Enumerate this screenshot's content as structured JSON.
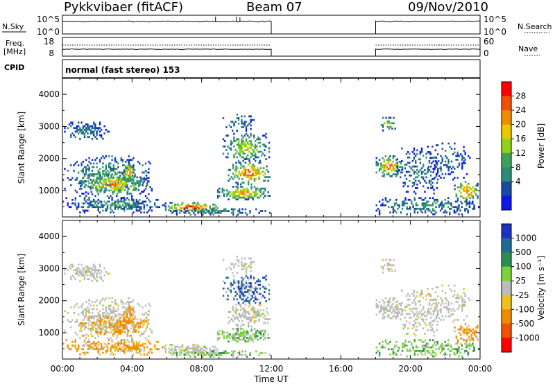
{
  "header": {
    "station": "Pykkvibaer (fitACF)",
    "beam": "Beam 07",
    "date": "09/Nov/2010"
  },
  "strips": {
    "nsky_label": "N.Sky",
    "nsky_ticks": [
      "10^5",
      "10^0"
    ],
    "nsearch_label": "N.Search",
    "nsearch_ticks": [
      "10^5",
      "10^0"
    ],
    "freq_label_1": "Freq.",
    "freq_label_2": "[MHz]",
    "freq_ticks": [
      "18",
      "8"
    ],
    "nave_label": "Nave",
    "nave_ticks": [
      "60",
      "0"
    ],
    "cpid_label": "CPID",
    "cpid_text": "normal (fast stereo) 153"
  },
  "chart_data": [
    {
      "type": "heatmap",
      "name": "power",
      "ylabel": "Slant Range [km]",
      "ylim": [
        180,
        4500
      ],
      "yticks": [
        1000,
        2000,
        3000,
        4000
      ],
      "colorbar_label": "Power [dB]",
      "colorbar_ticks": [
        "28",
        "24",
        "20",
        "16",
        "12",
        "8",
        "4"
      ],
      "colorbar_colors": [
        "#ff0000",
        "#f05000",
        "#f08a00",
        "#e8c800",
        "#8ed21a",
        "#3fa05a",
        "#2d8c78",
        "#1a4aa0",
        "#1018e6"
      ],
      "data_gaps_ut": [
        [
          12.0,
          18.0
        ]
      ]
    },
    {
      "type": "heatmap",
      "name": "velocity",
      "ylabel": "Slant Range [km]",
      "ylim": [
        180,
        4500
      ],
      "yticks": [
        1000,
        2000,
        3000,
        4000
      ],
      "xlabel": "Time UT",
      "xticks": [
        "00:00",
        "04:00",
        "08:00",
        "12:00",
        "16:00",
        "20:00",
        "00:00"
      ],
      "colorbar_label": "Velocity [m s⁻¹]",
      "colorbar_ticks": [
        "1000",
        "500",
        "100",
        "25",
        "-25",
        "-100",
        "-500",
        "-1000"
      ],
      "colorbar_colors": [
        "#2030c0",
        "#206a96",
        "#2d8c50",
        "#7ad23a",
        "#bcbcbc",
        "#f0c020",
        "#f08a00",
        "#f05000",
        "#ff0000"
      ],
      "data_gaps_ut": [
        [
          12.0,
          18.0
        ]
      ]
    }
  ]
}
